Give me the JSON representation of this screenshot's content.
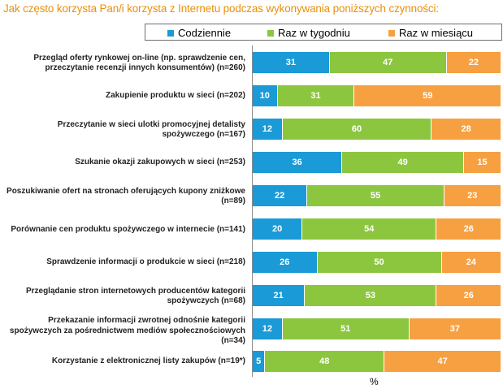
{
  "chart_data": {
    "type": "bar",
    "orientation": "horizontal",
    "stacked": true,
    "title": "Jak często korzysta Pan/i korzysta z Internetu  podczas wykonywania poniższych czynności:",
    "xlabel": "%",
    "xlim": [
      0,
      100
    ],
    "categories": [
      "Przegląd oferty rynkowej on-line (np. sprawdzenie cen, przeczytanie recenzji innych konsumentów) (n=260)",
      "Zakupienie produktu w sieci (n=202)",
      "Przeczytanie w sieci ulotki promocyjnej detalisty spożywczego (n=167)",
      "Szukanie okazji zakupowych w sieci (n=253)",
      "Poszukiwanie ofert na stronach oferujących kupony zniżkowe (n=89)",
      "Porównanie cen produktu spożywczego w internecie (n=141)",
      "Sprawdzenie informacji o produkcie w sieci (n=218)",
      "Przeglądanie stron internetowych producentów kategorii spożywczych (n=68)",
      "Przekazanie informacji zwrotnej odnośnie kategorii spożywczych za pośrednictwem mediów społecznościowych (n=34)",
      "Korzystanie z elektronicznej listy zakupów (n=19*)"
    ],
    "series": [
      {
        "name": "Codziennie",
        "color": "#1a9ad6",
        "values": [
          31,
          10,
          12,
          36,
          22,
          20,
          26,
          21,
          12,
          5
        ]
      },
      {
        "name": "Raz w tygodniu",
        "color": "#8cc63f",
        "values": [
          47,
          31,
          60,
          49,
          55,
          54,
          50,
          53,
          51,
          48
        ]
      },
      {
        "name": "Raz w miesiącu",
        "color": "#f7a041",
        "values": [
          22,
          59,
          28,
          15,
          23,
          26,
          24,
          26,
          37,
          47
        ]
      }
    ],
    "legend_position": "top"
  }
}
